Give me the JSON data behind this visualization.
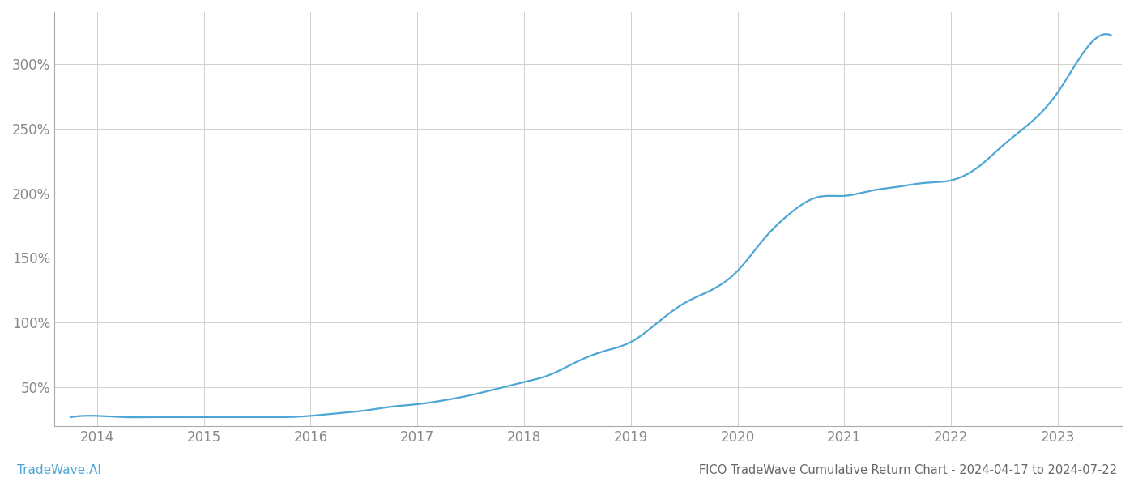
{
  "title": "FICO TradeWave Cumulative Return Chart - 2024-04-17 to 2024-07-22",
  "watermark": "TradeWave.AI",
  "line_color": "#4da6d4",
  "background_color": "#ffffff",
  "grid_color": "#d0d0d0",
  "text_color": "#888888",
  "x_years": [
    2014,
    2015,
    2016,
    2017,
    2018,
    2019,
    2020,
    2021,
    2022,
    2023
  ],
  "x_data": [
    2013.75,
    2014.0,
    2014.25,
    2014.5,
    2014.75,
    2015.0,
    2015.25,
    2015.5,
    2015.75,
    2016.0,
    2016.25,
    2016.5,
    2016.75,
    2017.0,
    2017.25,
    2017.5,
    2017.75,
    2018.0,
    2018.25,
    2018.5,
    2018.75,
    2019.0,
    2019.25,
    2019.5,
    2019.75,
    2020.0,
    2020.25,
    2020.5,
    2020.75,
    2021.0,
    2021.25,
    2021.5,
    2021.75,
    2022.0,
    2022.25,
    2022.5,
    2022.75,
    2023.0,
    2023.25,
    2023.5
  ],
  "y_data": [
    27,
    28,
    27,
    27,
    27,
    27,
    27,
    27,
    27,
    28,
    30,
    32,
    35,
    37,
    40,
    44,
    49,
    54,
    60,
    70,
    78,
    85,
    100,
    115,
    125,
    140,
    165,
    185,
    197,
    198,
    202,
    205,
    208,
    210,
    220,
    238,
    255,
    278,
    310,
    322
  ],
  "ylim": [
    20,
    340
  ],
  "yticks": [
    50,
    100,
    150,
    200,
    250,
    300
  ],
  "xlim": [
    2013.6,
    2023.6
  ],
  "title_fontsize": 10.5,
  "watermark_fontsize": 11,
  "tick_fontsize": 12,
  "title_color": "#666666",
  "watermark_color": "#4da6d4",
  "spine_color": "#aaaaaa"
}
